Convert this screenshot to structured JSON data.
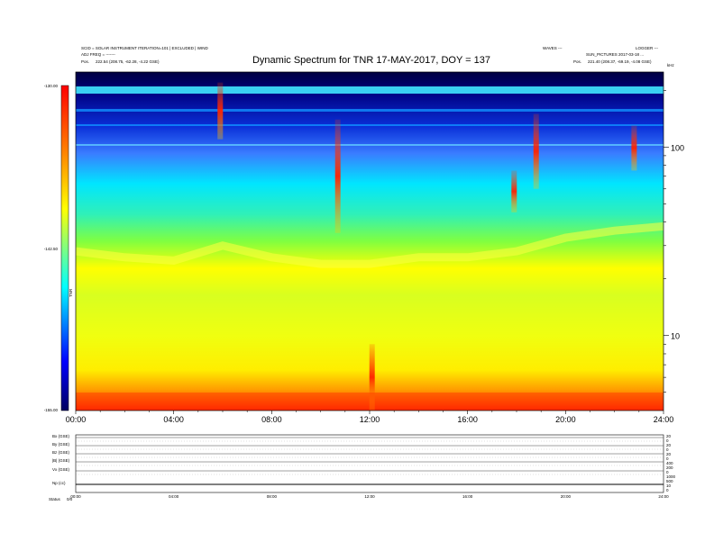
{
  "header": {
    "left_line1": "SCID = SOLAR INSTRUMENT  ITERATION=101 | EXCLUDED | WIND",
    "left_line2": "ADJ FREQ = -------",
    "left_line3_label": "Pos.",
    "left_line3_value": "222.54 (208.75, -62.28, -4.22 GSE)",
    "right_line1": "WAVES ---",
    "right_line2": "SUN_PICTURES 2017-03-18 ...",
    "right_line3_label": "Pos.",
    "right_line3_value": "221.40 (208.37, -69.19, -4.08 GSE)",
    "right_corner": "LOGGER ---"
  },
  "chart_data": {
    "type": "heatmap",
    "title": "Dynamic Spectrum for TNR 17-MAY-2017, DOY = 137",
    "x_ticks": [
      "00:00",
      "04:00",
      "08:00",
      "12:00",
      "16:00",
      "20:00",
      "24:00"
    ],
    "x_range_hours": [
      0,
      24
    ],
    "y_right_ticks": [
      "100",
      "10"
    ],
    "y_right_scale": "log",
    "y_right_range_khz": [
      4,
      250
    ],
    "y_right_unit": "kHz",
    "colorbar": {
      "label": "TNR",
      "ticks": [
        "-130.00",
        "-142.50",
        "-155.00"
      ],
      "range": [
        -155,
        -130
      ],
      "colors": [
        "#000080",
        "#0000ff",
        "#00ffff",
        "#ffff00",
        "#ff8000",
        "#ff0000"
      ]
    },
    "grid": false,
    "bursts": [
      {
        "t": 5.9,
        "f_top": 220,
        "f_bottom": 110
      },
      {
        "t": 10.7,
        "f_top": 140,
        "f_bottom": 35
      },
      {
        "t": 12.1,
        "f_top": 9,
        "f_bottom": 4
      },
      {
        "t": 17.9,
        "f_top": 75,
        "f_bottom": 45
      },
      {
        "t": 18.8,
        "f_top": 150,
        "f_bottom": 60
      },
      {
        "t": 22.8,
        "f_top": 130,
        "f_bottom": 75
      }
    ],
    "plasma_line_khz": [
      [
        0,
        28
      ],
      [
        2,
        26
      ],
      [
        4,
        25
      ],
      [
        6,
        30
      ],
      [
        8,
        26
      ],
      [
        10,
        24
      ],
      [
        12,
        24
      ],
      [
        14,
        26
      ],
      [
        16,
        26
      ],
      [
        18,
        28
      ],
      [
        20,
        33
      ],
      [
        22,
        36
      ],
      [
        24,
        38
      ]
    ]
  },
  "bottom_panel": {
    "labels": [
      "Bx (GSE)",
      "By (GSE)",
      "Bz (GSE)",
      "|B| (GSE)",
      "Vx (GSE)",
      "Np (cc)"
    ],
    "right_ticks": [
      "20",
      "0",
      "20",
      "0",
      "20",
      "0",
      "400",
      "200",
      "0",
      "1000",
      "500",
      "10",
      "0"
    ],
    "x_ticks": [
      "00:00",
      "04:00",
      "08:00",
      "12:00",
      "16:00",
      "20:00",
      "24:00"
    ],
    "status_label": "Status",
    "status_value": "0/0"
  }
}
